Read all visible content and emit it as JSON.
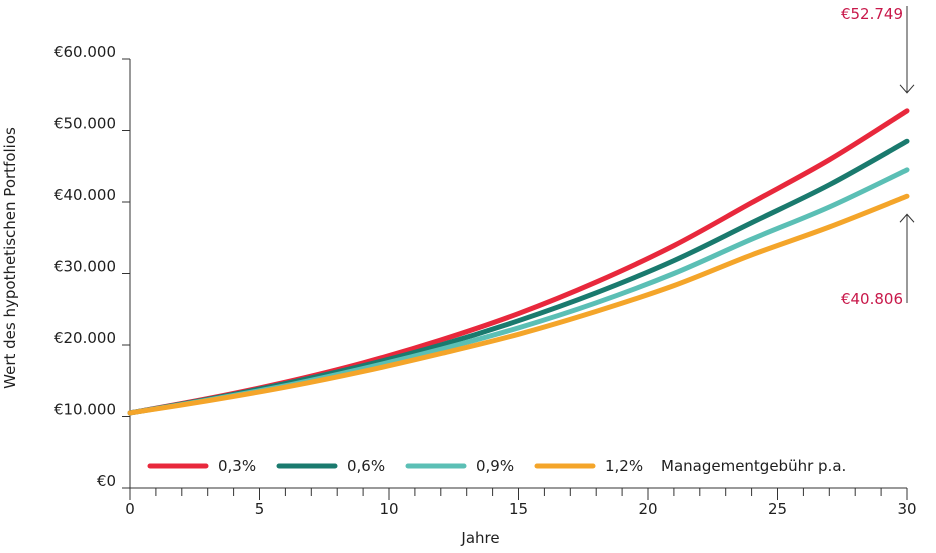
{
  "chart_data": {
    "type": "line",
    "title": "",
    "xlabel": "Jahre",
    "ylabel": "Wert des hypothetischen Portfolios",
    "xlim": [
      0,
      30
    ],
    "ylim": [
      0,
      60000
    ],
    "x_ticks": [
      "0",
      "5",
      "10",
      "15",
      "20",
      "25",
      "30"
    ],
    "y_ticks": [
      "€0",
      "€10.000",
      "€20.000",
      "€30.000",
      "€40.000",
      "€50.000",
      "€60.000"
    ],
    "grid": false,
    "legend_position": "bottom-inside",
    "legend_suffix": "Managementgebühr p.a.",
    "x": [
      0,
      3,
      6,
      9,
      12,
      15,
      18,
      21,
      24,
      27,
      30
    ],
    "series": [
      {
        "name": "0,3%",
        "color": "#e8283c",
        "values": [
          10500,
          12500,
          14800,
          17500,
          20700,
          24400,
          28800,
          33900,
          39900,
          45900,
          52749
        ]
      },
      {
        "name": "0,6%",
        "color": "#1a7a6e",
        "values": [
          10500,
          12400,
          14600,
          17100,
          20000,
          23400,
          27300,
          31800,
          37100,
          42400,
          48500
        ]
      },
      {
        "name": "0,9%",
        "color": "#5bbfb5",
        "values": [
          10500,
          12300,
          14300,
          16700,
          19400,
          22400,
          25900,
          30000,
          34800,
          39300,
          44500
        ]
      },
      {
        "name": "1,2%",
        "color": "#f4a52a",
        "values": [
          10500,
          12200,
          14100,
          16300,
          18800,
          21500,
          24700,
          28300,
          32600,
          36500,
          40806
        ]
      }
    ],
    "annotations": [
      {
        "text": "€52.749",
        "x": 30,
        "y": 52749,
        "color": "#c8184a"
      },
      {
        "text": "€40.806",
        "x": 30,
        "y": 40806,
        "color": "#c8184a"
      }
    ]
  }
}
